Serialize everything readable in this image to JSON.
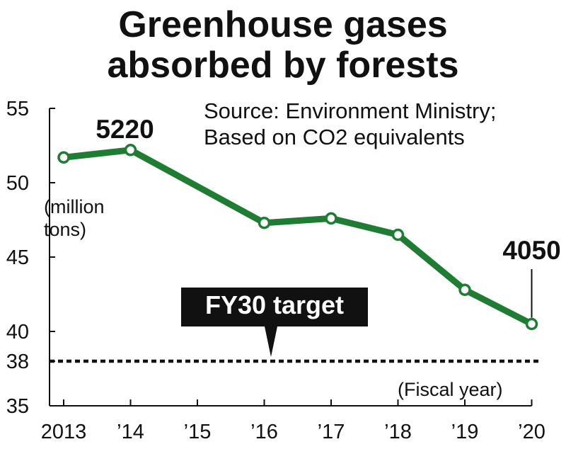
{
  "chart_data": {
    "type": "line",
    "title_lines": [
      "Greenhouse gases",
      "absorbed by forests"
    ],
    "source_lines": [
      "Source: Environment Ministry;",
      "Based on CO2 equivalents"
    ],
    "ylabel_lines": [
      "(million",
      "tons)"
    ],
    "xlabel": "(Fiscal year)",
    "categories": [
      "2013",
      "’14",
      "’15",
      "’16",
      "’17",
      "’18",
      "’19",
      "’20"
    ],
    "series": [
      {
        "color": "#1e7d32",
        "values": [
          51.7,
          52.2,
          null,
          47.3,
          47.6,
          46.5,
          42.8,
          40.5
        ]
      }
    ],
    "ylim": [
      35,
      55
    ],
    "yticks": [
      "35",
      "38",
      "40",
      "45",
      "50",
      "55"
    ],
    "ytick_values": [
      35,
      38,
      40,
      45,
      50,
      55
    ],
    "data_labels": [
      {
        "index": 1,
        "text": "5220"
      },
      {
        "index": 7,
        "text": "4050"
      }
    ],
    "target": {
      "label": "FY30 target",
      "value": 38
    },
    "grid": false,
    "legend": "none"
  }
}
